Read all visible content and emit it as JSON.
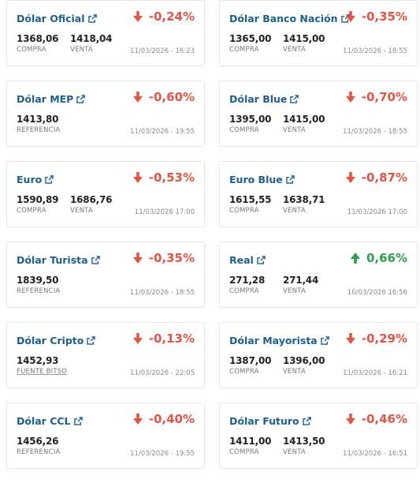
{
  "cards": [
    {
      "title": "Dólar Oficial",
      "change": "-0,24%",
      "trend": "down",
      "values": [
        {
          "num": "1368,06",
          "label": "COMPRA"
        },
        {
          "num": "1418,04",
          "label": "VENTA"
        }
      ],
      "timestamp": "11/03/2026 - 16:23"
    },
    {
      "title": "Dólar Banco Nación",
      "change": "-0,35%",
      "trend": "down",
      "values": [
        {
          "num": "1365,00",
          "label": "COMPRA"
        },
        {
          "num": "1415,00",
          "label": "VENTA"
        }
      ],
      "timestamp": "11/03/2026 - 18:55"
    },
    {
      "title": "Dólar MEP",
      "change": "-0,60%",
      "trend": "down",
      "values": [
        {
          "num": "1413,80",
          "label": "REFERENCIA"
        }
      ],
      "timestamp": "11/03/2026 - 19:55"
    },
    {
      "title": "Dólar Blue",
      "change": "-0,70%",
      "trend": "down",
      "values": [
        {
          "num": "1395,00",
          "label": "COMPRA"
        },
        {
          "num": "1415,00",
          "label": "VENTA"
        }
      ],
      "timestamp": "11/03/2026 - 18:55"
    },
    {
      "title": "Euro",
      "change": "-0,53%",
      "trend": "down",
      "values": [
        {
          "num": "1590,89",
          "label": "COMPRA"
        },
        {
          "num": "1686,76",
          "label": "VENTA"
        }
      ],
      "timestamp": "11/03/2026 17:00"
    },
    {
      "title": "Euro Blue",
      "change": "-0,87%",
      "trend": "down",
      "values": [
        {
          "num": "1615,55",
          "label": "COMPRA"
        },
        {
          "num": "1638,71",
          "label": "VENTA"
        }
      ],
      "timestamp": "11/03/2026 17:00"
    },
    {
      "title": "Dólar Turista",
      "change": "-0,35%",
      "trend": "down",
      "values": [
        {
          "num": "1839,50",
          "label": "REFERENCIA"
        }
      ],
      "timestamp": "11/03/2026 - 18:55"
    },
    {
      "title": "Real",
      "change": "0,66%",
      "trend": "up",
      "values": [
        {
          "num": "271,28",
          "label": "COMPRA"
        },
        {
          "num": "271,44",
          "label": "VENTA"
        }
      ],
      "timestamp": "10/03/2026 16:56"
    },
    {
      "title": "Dólar Cripto",
      "change": "-0,13%",
      "trend": "down",
      "values": [
        {
          "num": "1452,93",
          "label": "FUENTE BITSO",
          "link": true
        }
      ],
      "timestamp": "11/03/2026 - 22:05"
    },
    {
      "title": "Dólar Mayorista",
      "change": "-0,29%",
      "trend": "down",
      "values": [
        {
          "num": "1387,00",
          "label": "COMPRA"
        },
        {
          "num": "1396,00",
          "label": "VENTA"
        }
      ],
      "timestamp": "11/03/2026 - 16:21"
    },
    {
      "title": "Dólar CCL",
      "change": "-0,40%",
      "trend": "down",
      "values": [
        {
          "num": "1456,26",
          "label": "REFERENCIA"
        }
      ],
      "timestamp": "11/03/2026 - 19:55"
    },
    {
      "title": "Dólar Futuro",
      "change": "-0,46%",
      "trend": "down",
      "values": [
        {
          "num": "1411,00",
          "label": "COMPRA"
        },
        {
          "num": "1413,50",
          "label": "VENTA"
        }
      ],
      "timestamp": "11/03/2026 - 16:51"
    }
  ],
  "icons": {
    "external": "external-link-icon",
    "down": "arrow-down-icon",
    "up": "arrow-up-icon"
  },
  "colors": {
    "title": "#1e5f8c",
    "down": "#e25545",
    "up": "#2e9e53"
  }
}
